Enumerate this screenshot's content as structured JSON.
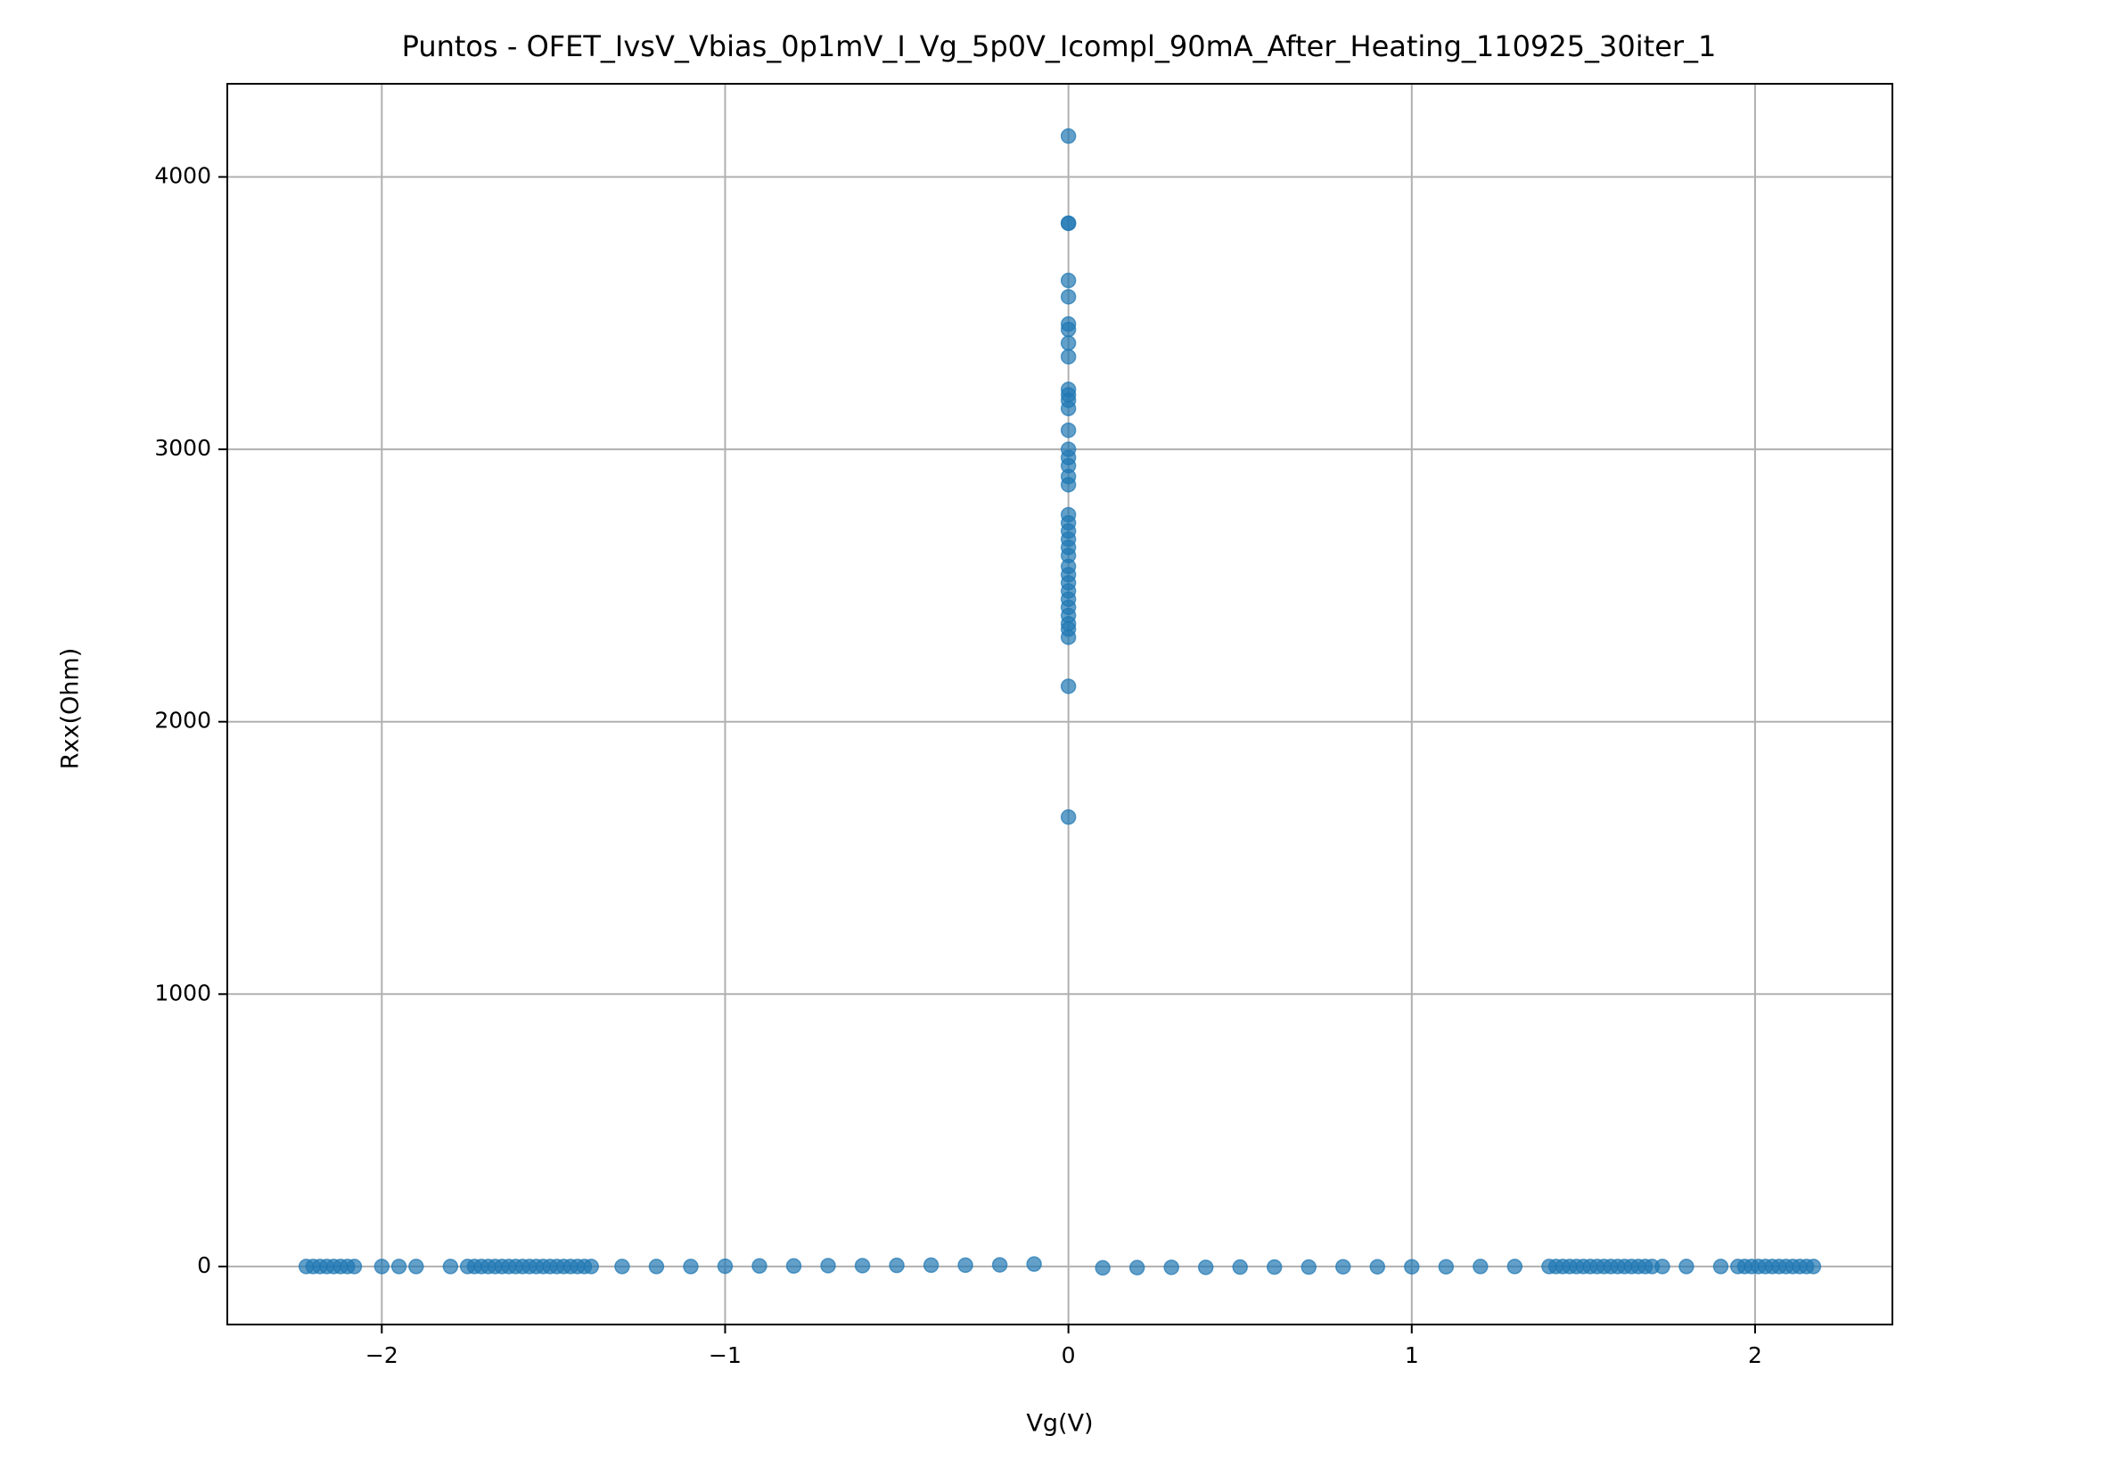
{
  "chart_data": {
    "type": "scatter",
    "title": "Puntos - OFET_IvsV_Vbias_0p1mV_I_Vg_5p0V_Icompl_90mA_After_Heating_110925_30iter_1",
    "x_label": "Vg(V)",
    "y_label": "Rxx(Ohm)",
    "color": "#1f77b4",
    "grid": true,
    "xlim": [
      -2.45,
      2.4
    ],
    "ylim": [
      -213,
      4342
    ],
    "xticks": [
      {
        "value": -2,
        "label": "−2"
      },
      {
        "value": -1,
        "label": "−1"
      },
      0,
      1,
      2
    ],
    "yticks": [
      0,
      1000,
      2000,
      3000,
      4000
    ],
    "x": [
      -2.22,
      -2.2,
      -2.18,
      -2.16,
      -2.14,
      -2.12,
      -2.1,
      -2.08,
      -2,
      -1.95,
      -1.9,
      -1.8,
      -1.75,
      -1.73,
      -1.71,
      -1.69,
      -1.67,
      -1.65,
      -1.63,
      -1.61,
      -1.59,
      -1.57,
      -1.55,
      -1.53,
      -1.51,
      -1.49,
      -1.47,
      -1.45,
      -1.43,
      -1.41,
      -1.39,
      -1.3,
      -1.2,
      -1.1,
      -1,
      -0.9,
      -0.8,
      -0.7,
      -0.6,
      -0.5,
      -0.4,
      -0.3,
      -0.2,
      -0.1,
      0,
      0,
      0,
      0,
      0,
      0,
      0,
      0,
      0,
      0,
      0,
      0,
      0,
      0,
      0,
      0,
      0,
      0,
      0,
      0,
      0,
      0,
      0,
      0,
      0,
      0,
      0,
      0,
      0,
      0,
      0,
      0,
      0,
      0,
      0,
      0,
      0,
      0.1,
      0.2,
      0.3,
      0.4,
      0.5,
      0.6,
      0.7,
      0.8,
      0.9,
      1,
      1.1,
      1.2,
      1.3,
      1.4,
      1.42,
      1.44,
      1.46,
      1.48,
      1.5,
      1.52,
      1.54,
      1.56,
      1.58,
      1.6,
      1.62,
      1.64,
      1.66,
      1.68,
      1.7,
      1.73,
      1.8,
      1.9,
      1.95,
      1.97,
      1.99,
      2.01,
      2.03,
      2.05,
      2.07,
      2.09,
      2.11,
      2.13,
      2.15,
      2.17
    ],
    "values": [
      0,
      0,
      0,
      0,
      0,
      0,
      0,
      0,
      0,
      0,
      0,
      0,
      0,
      0,
      0,
      0,
      0,
      0,
      0,
      0,
      0,
      0,
      0,
      0,
      0,
      0,
      0,
      0,
      0,
      0,
      0,
      0,
      0,
      0,
      1,
      2,
      2,
      3,
      3,
      4,
      5,
      5,
      6,
      9,
      4150,
      3830,
      3830,
      3620,
      3560,
      3460,
      3440,
      3390,
      3340,
      3220,
      3200,
      3180,
      3150,
      3070,
      3000,
      2970,
      2940,
      2900,
      2870,
      2760,
      2730,
      2700,
      2670,
      2640,
      2610,
      2570,
      2540,
      2510,
      2480,
      2450,
      2420,
      2390,
      2360,
      2340,
      2310,
      2130,
      1650,
      -5,
      -4,
      -3,
      -3,
      -2,
      -2,
      -2,
      -1,
      -1,
      -1,
      -1,
      0,
      0,
      0,
      0,
      0,
      0,
      0,
      0,
      0,
      0,
      0,
      0,
      0,
      0,
      0,
      0,
      0,
      0,
      0,
      0,
      0,
      0,
      0,
      0,
      0,
      0,
      0,
      0,
      0,
      0,
      0,
      0,
      0
    ]
  }
}
